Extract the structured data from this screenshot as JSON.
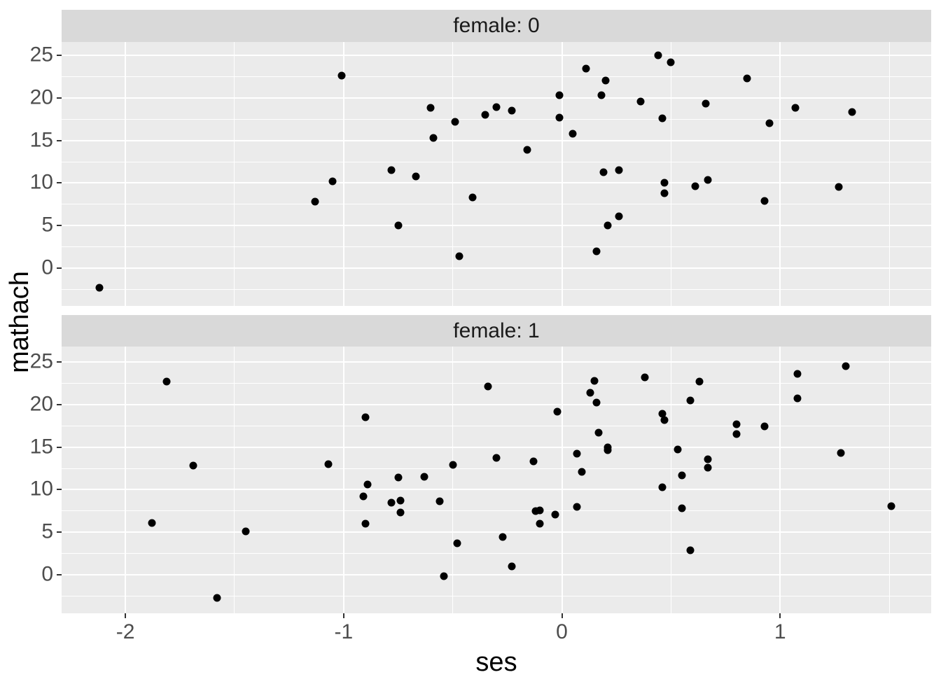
{
  "chart_data": {
    "type": "scatter",
    "title": "",
    "xlabel": "ses",
    "ylabel": "mathach",
    "facet_variable": "female",
    "legend": "none",
    "grid": "on",
    "x_ticks": [
      -2,
      -1,
      0,
      1
    ],
    "y_ticks": [
      0,
      5,
      10,
      15,
      20,
      25
    ],
    "xlim": [
      -2.29,
      1.69
    ],
    "ylim": [
      -4.5,
      26.6
    ],
    "point_color": "#000000",
    "panels": [
      {
        "label": "female: 0",
        "points": [
          [
            -2.12,
            -2.3
          ],
          [
            -1.13,
            7.8
          ],
          [
            -1.05,
            10.2
          ],
          [
            -1.01,
            22.6
          ],
          [
            -0.78,
            11.5
          ],
          [
            -0.75,
            5.0
          ],
          [
            -0.67,
            10.8
          ],
          [
            -0.6,
            18.8
          ],
          [
            -0.59,
            15.3
          ],
          [
            -0.49,
            17.2
          ],
          [
            -0.47,
            1.4
          ],
          [
            -0.41,
            8.3
          ],
          [
            -0.35,
            18.0
          ],
          [
            -0.3,
            18.9
          ],
          [
            -0.23,
            18.5
          ],
          [
            -0.16,
            13.9
          ],
          [
            -0.01,
            20.3
          ],
          [
            -0.01,
            17.7
          ],
          [
            0.05,
            15.8
          ],
          [
            0.11,
            23.4
          ],
          [
            0.16,
            2.0
          ],
          [
            0.18,
            20.3
          ],
          [
            0.19,
            11.3
          ],
          [
            0.2,
            22.0
          ],
          [
            0.21,
            5.0
          ],
          [
            0.26,
            11.5
          ],
          [
            0.26,
            6.1
          ],
          [
            0.36,
            19.6
          ],
          [
            0.44,
            25.0
          ],
          [
            0.46,
            17.6
          ],
          [
            0.47,
            10.0
          ],
          [
            0.47,
            8.8
          ],
          [
            0.5,
            24.2
          ],
          [
            0.61,
            9.6
          ],
          [
            0.66,
            19.3
          ],
          [
            0.67,
            10.4
          ],
          [
            0.85,
            22.3
          ],
          [
            0.93,
            7.9
          ],
          [
            0.95,
            17.0
          ],
          [
            1.07,
            18.8
          ],
          [
            1.27,
            9.5
          ],
          [
            1.33,
            18.3
          ]
        ]
      },
      {
        "label": "female: 1",
        "points": [
          [
            -1.88,
            6.1
          ],
          [
            -1.81,
            22.7
          ],
          [
            -1.69,
            12.8
          ],
          [
            -1.58,
            -2.7
          ],
          [
            -1.45,
            5.1
          ],
          [
            -1.07,
            13.0
          ],
          [
            -0.91,
            9.2
          ],
          [
            -0.9,
            18.5
          ],
          [
            -0.9,
            6.0
          ],
          [
            -0.89,
            10.6
          ],
          [
            -0.78,
            8.5
          ],
          [
            -0.75,
            11.4
          ],
          [
            -0.74,
            8.7
          ],
          [
            -0.74,
            7.3
          ],
          [
            -0.63,
            11.5
          ],
          [
            -0.56,
            8.6
          ],
          [
            -0.54,
            -0.2
          ],
          [
            -0.5,
            12.9
          ],
          [
            -0.48,
            3.7
          ],
          [
            -0.34,
            22.1
          ],
          [
            -0.3,
            13.7
          ],
          [
            -0.27,
            4.4
          ],
          [
            -0.23,
            1.0
          ],
          [
            -0.13,
            13.3
          ],
          [
            -0.12,
            7.5
          ],
          [
            -0.1,
            7.6
          ],
          [
            -0.1,
            6.0
          ],
          [
            -0.03,
            7.1
          ],
          [
            -0.02,
            19.2
          ],
          [
            0.07,
            14.2
          ],
          [
            0.07,
            8.0
          ],
          [
            0.09,
            12.1
          ],
          [
            0.13,
            21.4
          ],
          [
            0.15,
            22.8
          ],
          [
            0.16,
            20.2
          ],
          [
            0.17,
            16.7
          ],
          [
            0.21,
            15.0
          ],
          [
            0.21,
            14.6
          ],
          [
            0.38,
            23.2
          ],
          [
            0.46,
            18.9
          ],
          [
            0.46,
            10.3
          ],
          [
            0.47,
            18.2
          ],
          [
            0.53,
            14.7
          ],
          [
            0.55,
            11.7
          ],
          [
            0.55,
            7.8
          ],
          [
            0.59,
            20.5
          ],
          [
            0.59,
            2.9
          ],
          [
            0.63,
            22.7
          ],
          [
            0.67,
            13.6
          ],
          [
            0.67,
            12.6
          ],
          [
            0.8,
            17.7
          ],
          [
            0.8,
            16.5
          ],
          [
            0.93,
            17.4
          ],
          [
            1.08,
            23.6
          ],
          [
            1.08,
            20.7
          ],
          [
            1.28,
            14.3
          ],
          [
            1.3,
            24.5
          ],
          [
            1.51,
            8.1
          ]
        ]
      }
    ]
  },
  "colors": {
    "panel_background": "#ebebeb",
    "strip_background": "#d9d9d9",
    "gridline": "#ffffff",
    "point": "#000000",
    "axis_text": "#4d4d4d",
    "axis_title": "#000000",
    "figure_background": "#ffffff"
  }
}
